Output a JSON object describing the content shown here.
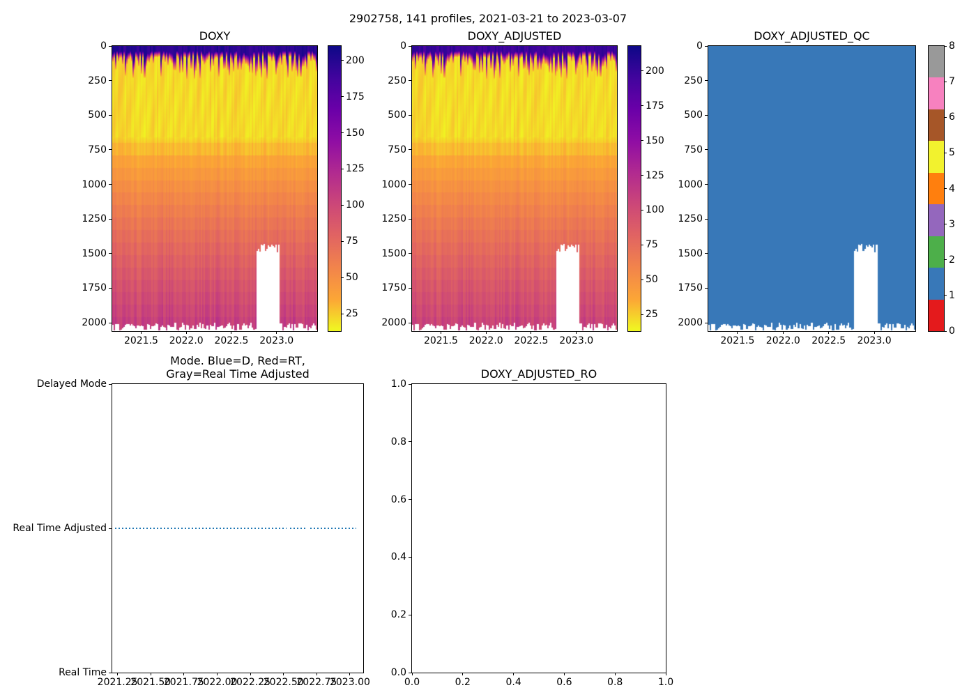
{
  "figure": {
    "title": "2902758, 141 profiles, 2021-03-21 to 2023-03-07",
    "background": "#ffffff"
  },
  "palette": {
    "plasma_r_stops": [
      "#f0f921",
      "#fca636",
      "#f2844b",
      "#e16462",
      "#cc4778",
      "#b12a90",
      "#8f0da4",
      "#6a00a8",
      "#41049d",
      "#0d0887"
    ],
    "qc_colors": [
      "#e41a1c",
      "#3878b8",
      "#4daf4a",
      "#9467bd",
      "#ff7f0e",
      "#f2f22e",
      "#a65628",
      "#f781bf",
      "#999999"
    ],
    "qc_fill_color": "#3878b8",
    "mode_line_color": "#1f77b4",
    "axis_color": "#000000"
  },
  "chart_data": [
    {
      "id": "doxy",
      "type": "heatmap",
      "title": "DOXY",
      "x_range": [
        2021.18,
        2023.45
      ],
      "x_ticks": [
        2021.5,
        2022.0,
        2022.5,
        2023.0
      ],
      "x_tick_labels": [
        "2021.5",
        "2022.0",
        "2022.5",
        "2023.0"
      ],
      "y_range": [
        0,
        2060
      ],
      "y_inverted": true,
      "y_ticks": [
        0,
        250,
        500,
        750,
        1000,
        1250,
        1500,
        1750,
        2000
      ],
      "y_tick_labels": [
        "0",
        "250",
        "500",
        "750",
        "1000",
        "1250",
        "1500",
        "1750",
        "2000"
      ],
      "n_profiles": 141,
      "profile_shape": {
        "surface_value_umol_kg": 198,
        "surface_dark_layer_bottom_m": 110,
        "oxygen_min_value_umol_kg": 22,
        "oxygen_min_layer_top_m": 150,
        "oxygen_min_layer_bottom_m": 660,
        "deep_value_umol_kg": 105,
        "max_depth_m": 2050
      },
      "missing_data_gap": {
        "x_start": 2022.78,
        "x_end": 2023.04,
        "below_depth_m": 1450
      },
      "colorbar": {
        "vmin": 13,
        "vmax": 210,
        "ticks": [
          25,
          50,
          75,
          100,
          125,
          150,
          175,
          200
        ],
        "tick_labels": [
          "25",
          "50",
          "75",
          "100",
          "125",
          "150",
          "175",
          "200"
        ]
      }
    },
    {
      "id": "doxy_adjusted",
      "type": "heatmap",
      "title": "DOXY_ADJUSTED",
      "x_range": [
        2021.18,
        2023.45
      ],
      "x_ticks": [
        2021.5,
        2022.0,
        2022.5,
        2023.0
      ],
      "x_tick_labels": [
        "2021.5",
        "2022.0",
        "2022.5",
        "2023.0"
      ],
      "y_range": [
        0,
        2060
      ],
      "y_inverted": true,
      "y_ticks": [
        0,
        250,
        500,
        750,
        1000,
        1250,
        1500,
        1750,
        2000
      ],
      "y_tick_labels": [
        "0",
        "250",
        "500",
        "750",
        "1000",
        "1250",
        "1500",
        "1750",
        "2000"
      ],
      "n_profiles": 141,
      "profile_shape": {
        "surface_value_umol_kg": 205,
        "surface_dark_layer_bottom_m": 110,
        "oxygen_min_value_umol_kg": 22,
        "oxygen_min_layer_top_m": 150,
        "oxygen_min_layer_bottom_m": 660,
        "deep_value_umol_kg": 105,
        "max_depth_m": 2050
      },
      "missing_data_gap": {
        "x_start": 2022.78,
        "x_end": 2023.04,
        "below_depth_m": 1450
      },
      "colorbar": {
        "vmin": 13,
        "vmax": 218,
        "ticks": [
          25,
          50,
          75,
          100,
          125,
          150,
          175,
          200
        ],
        "tick_labels": [
          "25",
          "50",
          "75",
          "100",
          "125",
          "150",
          "175",
          "200"
        ]
      }
    },
    {
      "id": "doxy_adjusted_qc",
      "type": "heatmap",
      "title": "DOXY_ADJUSTED_QC",
      "x_range": [
        2021.18,
        2023.45
      ],
      "x_ticks": [
        2021.5,
        2022.0,
        2022.5,
        2023.0
      ],
      "x_tick_labels": [
        "2021.5",
        "2022.0",
        "2022.5",
        "2023.0"
      ],
      "y_range": [
        0,
        2060
      ],
      "y_inverted": true,
      "y_ticks": [
        0,
        250,
        500,
        750,
        1000,
        1250,
        1500,
        1750,
        2000
      ],
      "y_tick_labels": [
        "0",
        "250",
        "500",
        "750",
        "1000",
        "1250",
        "1500",
        "1750",
        "2000"
      ],
      "n_profiles": 141,
      "constant_qc_value": 1,
      "missing_data_gap": {
        "x_start": 2022.78,
        "x_end": 2023.04,
        "below_depth_m": 1450
      },
      "colorbar": {
        "vmin": 0,
        "vmax": 8,
        "ticks": [
          0,
          1,
          2,
          3,
          4,
          5,
          6,
          7,
          8
        ],
        "tick_labels": [
          "0",
          "1",
          "2",
          "3",
          "4",
          "5",
          "6",
          "7",
          "8"
        ],
        "discrete": true
      }
    },
    {
      "id": "mode",
      "type": "line",
      "title": "Mode. Blue=D, Red=RT,\nGray=Real Time Adjusted",
      "x_range": [
        2021.21,
        2023.1
      ],
      "x_ticks": [
        2021.25,
        2021.5,
        2021.75,
        2022.0,
        2022.25,
        2022.5,
        2022.75,
        2023.0
      ],
      "x_tick_labels": [
        "2021.25",
        "2021.50",
        "2021.75",
        "2022.00",
        "2022.25",
        "2022.50",
        "2022.75",
        "2023.00"
      ],
      "y_range": [
        0,
        1
      ],
      "y_ticks": [
        1,
        0.5,
        0
      ],
      "y_tick_labels": [
        "Delayed Mode",
        "Real Time Adjusted",
        "Real Time"
      ],
      "series": [
        {
          "name": "mode",
          "value_level": "Real Time Adjusted",
          "y": 0.5,
          "style": "dotted",
          "color": "#1f77b4",
          "segments_x": [
            [
              2021.23,
              2022.52
            ],
            [
              2022.55,
              2022.67
            ],
            [
              2022.7,
              2023.05
            ]
          ]
        }
      ]
    },
    {
      "id": "doxy_adjusted_ro",
      "type": "scatter",
      "title": "DOXY_ADJUSTED_RO",
      "x_range": [
        0,
        1
      ],
      "x_ticks": [
        0,
        0.2,
        0.4,
        0.6,
        0.8,
        1.0
      ],
      "x_tick_labels": [
        "0.0",
        "0.2",
        "0.4",
        "0.6",
        "0.8",
        "1.0"
      ],
      "y_range": [
        0,
        1
      ],
      "y_ticks": [
        0,
        0.2,
        0.4,
        0.6,
        0.8,
        1.0
      ],
      "y_tick_labels": [
        "0.0",
        "0.2",
        "0.4",
        "0.6",
        "0.8",
        "1.0"
      ],
      "points": []
    }
  ]
}
